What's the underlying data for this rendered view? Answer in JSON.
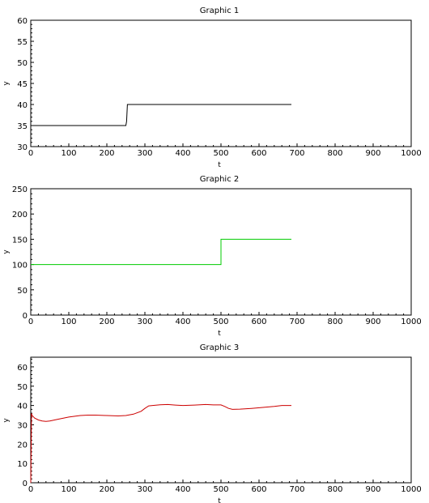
{
  "chart_data": [
    {
      "type": "line",
      "title": "Graphic 1",
      "xlabel": "t",
      "ylabel": "y",
      "xlim": [
        0,
        1000
      ],
      "ylim": [
        30,
        60
      ],
      "xticks": [
        "0",
        "100",
        "200",
        "300",
        "400",
        "500",
        "600",
        "700",
        "800",
        "900",
        "1000"
      ],
      "yticks": [
        "30",
        "35",
        "40",
        "45",
        "50",
        "55",
        "60"
      ],
      "series": [
        {
          "color": "#000000",
          "x": [
            0,
            250,
            252,
            254,
            685
          ],
          "y": [
            35,
            35,
            36,
            40,
            40
          ]
        }
      ]
    },
    {
      "type": "line",
      "title": "Graphic 2",
      "xlabel": "t",
      "ylabel": "y",
      "xlim": [
        0,
        1000
      ],
      "ylim": [
        0,
        250
      ],
      "xticks": [
        "0",
        "100",
        "200",
        "300",
        "400",
        "500",
        "600",
        "700",
        "800",
        "900",
        "1000"
      ],
      "yticks": [
        "0",
        "50",
        "100",
        "150",
        "200",
        "250"
      ],
      "series": [
        {
          "color": "#00cc00",
          "x": [
            0,
            500,
            500,
            685
          ],
          "y": [
            100,
            100,
            150,
            150
          ]
        }
      ]
    },
    {
      "type": "line",
      "title": "Graphic 3",
      "xlabel": "t",
      "ylabel": "y",
      "xlim": [
        0,
        1000
      ],
      "ylim": [
        0,
        65
      ],
      "xticks": [
        "0",
        "100",
        "200",
        "300",
        "400",
        "500",
        "600",
        "700",
        "800",
        "900",
        "1000"
      ],
      "yticks": [
        "0",
        "10",
        "20",
        "30",
        "40",
        "50",
        "60"
      ],
      "series": [
        {
          "color": "#cc0000",
          "x": [
            0,
            2,
            3,
            5,
            10,
            20,
            30,
            40,
            50,
            70,
            100,
            130,
            150,
            170,
            200,
            230,
            250,
            270,
            290,
            300,
            310,
            320,
            340,
            360,
            380,
            400,
            430,
            460,
            480,
            500,
            510,
            520,
            530,
            550,
            580,
            610,
            640,
            660,
            685
          ],
          "y": [
            0,
            36,
            35,
            34.5,
            33.5,
            32.5,
            32,
            31.8,
            32,
            32.8,
            34,
            34.8,
            35,
            35,
            34.8,
            34.6,
            34.8,
            35.5,
            37,
            38.5,
            39.8,
            40,
            40.4,
            40.5,
            40.2,
            40,
            40.2,
            40.5,
            40.3,
            40.3,
            39.5,
            38.5,
            38,
            38.1,
            38.5,
            39,
            39.5,
            40,
            40
          ]
        }
      ]
    }
  ]
}
